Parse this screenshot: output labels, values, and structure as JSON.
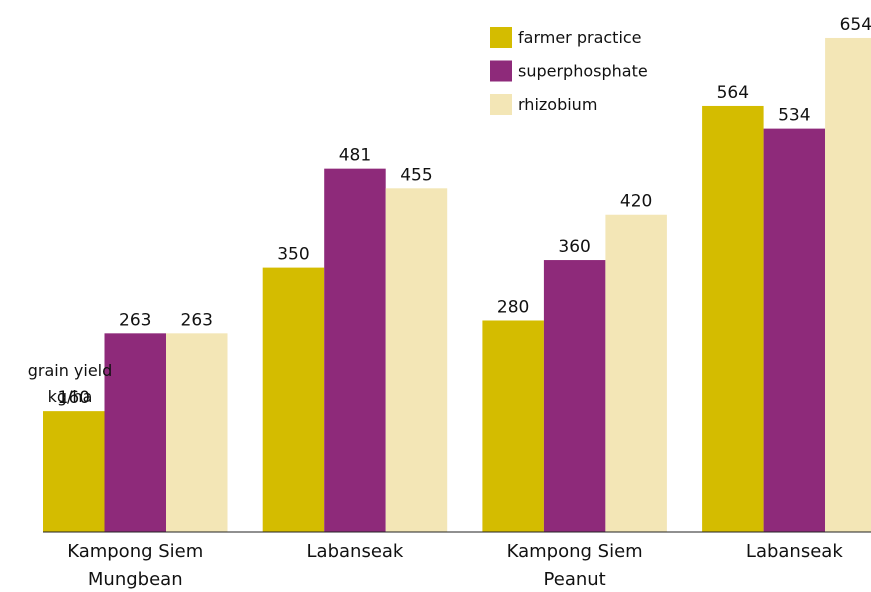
{
  "chart_data": {
    "type": "bar",
    "y_label": "grain yield kg/ha",
    "categories": [
      "Kampong Siem Mungbean",
      "Labanseak",
      "Kampong Siem Peanut",
      "Labanseak"
    ],
    "series": [
      {
        "name": "farmer practice",
        "color": "#d4bc00",
        "values": [
          160,
          350,
          280,
          564
        ]
      },
      {
        "name": "superphosphate",
        "color": "#8e2a7a",
        "values": [
          263,
          481,
          360,
          534
        ]
      },
      {
        "name": "rhizobium",
        "color": "#f3e6b6",
        "values": [
          263,
          455,
          420,
          654
        ]
      }
    ],
    "legend": "top-right"
  }
}
